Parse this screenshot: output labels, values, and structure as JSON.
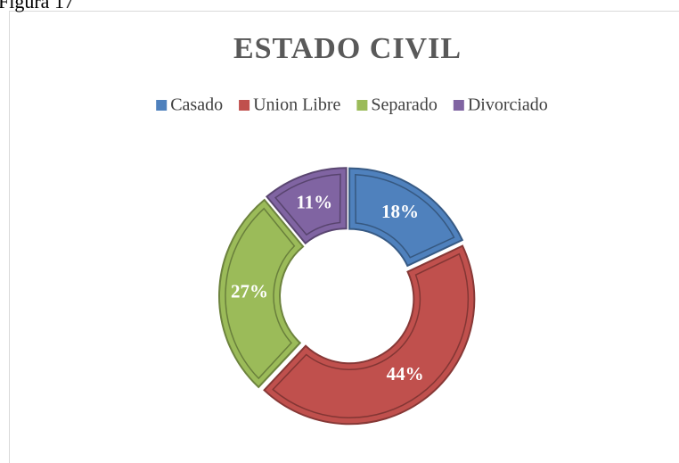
{
  "caption": "Figura 17",
  "chart_data": {
    "type": "donut",
    "title": "ESTADO CIVIL",
    "categories": [
      "Casado",
      "Union Libre",
      "Separado",
      "Divorciado"
    ],
    "values": [
      18,
      44,
      27,
      11
    ],
    "value_labels": [
      "18%",
      "44%",
      "27%",
      "11%"
    ],
    "colors": [
      "#4f81bd",
      "#c0504d",
      "#9bbb59",
      "#8064a2"
    ],
    "legend": "top"
  }
}
